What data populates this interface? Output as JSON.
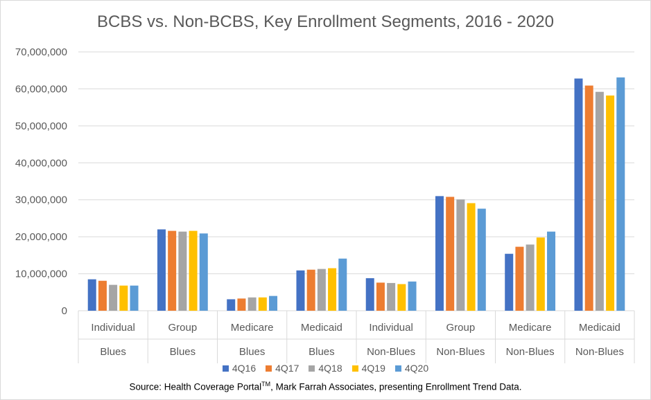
{
  "source": {
    "prefix": "Source: Health Coverage Portal",
    "superscript": "TM",
    "suffix": ", Mark Farrah Associates, presenting Enrollment Trend Data."
  },
  "chart_data": {
    "type": "bar",
    "title": "BCBS vs. Non-BCBS, Key Enrollment Segments, 2016 - 2020",
    "xlabel": "",
    "ylabel": "",
    "ylim": [
      0,
      70000000
    ],
    "yticks": [
      0,
      10000000,
      20000000,
      30000000,
      40000000,
      50000000,
      60000000,
      70000000
    ],
    "ytick_labels": [
      "0",
      "10,000,000",
      "20,000,000",
      "30,000,000",
      "40,000,000",
      "50,000,000",
      "60,000,000",
      "70,000,000"
    ],
    "grid": true,
    "legend_position": "bottom",
    "categories": [
      {
        "segment": "Individual",
        "group": "Blues"
      },
      {
        "segment": "Group",
        "group": "Blues"
      },
      {
        "segment": "Medicare",
        "group": "Blues"
      },
      {
        "segment": "Medicaid",
        "group": "Blues"
      },
      {
        "segment": "Individual",
        "group": "Non-Blues"
      },
      {
        "segment": "Group",
        "group": "Non-Blues"
      },
      {
        "segment": "Medicare",
        "group": "Non-Blues"
      },
      {
        "segment": "Medicaid",
        "group": "Non-Blues"
      }
    ],
    "series": [
      {
        "name": "4Q16",
        "color": "#4472c4",
        "values": [
          8500000,
          22000000,
          3100000,
          10900000,
          8800000,
          31000000,
          15400000,
          62800000
        ]
      },
      {
        "name": "4Q17",
        "color": "#ed7d31",
        "values": [
          8100000,
          21600000,
          3300000,
          11100000,
          7600000,
          30800000,
          17300000,
          60900000
        ]
      },
      {
        "name": "4Q18",
        "color": "#a5a5a5",
        "values": [
          7000000,
          21400000,
          3600000,
          11300000,
          7500000,
          30100000,
          17900000,
          59200000
        ]
      },
      {
        "name": "4Q19",
        "color": "#ffc000",
        "values": [
          6800000,
          21600000,
          3600000,
          11500000,
          7200000,
          29100000,
          19800000,
          58200000
        ]
      },
      {
        "name": "4Q20",
        "color": "#5b9bd5",
        "values": [
          6800000,
          20900000,
          4000000,
          14100000,
          7900000,
          27600000,
          21400000,
          63100000
        ]
      }
    ]
  }
}
